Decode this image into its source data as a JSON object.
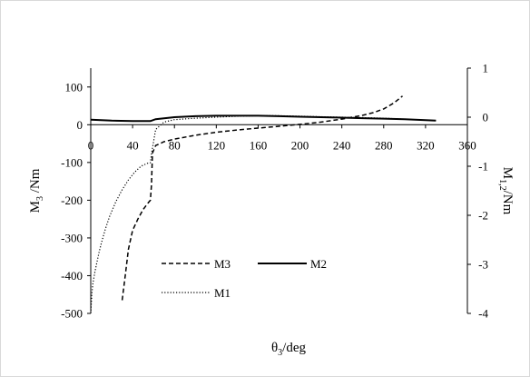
{
  "chart_data": {
    "type": "line",
    "xlabel": "θ3/deg",
    "ylabel_left": "M3 /Nm",
    "ylabel_right": "M1,2/Nm",
    "xlim": [
      0,
      360
    ],
    "ylim_left": [
      -500,
      150
    ],
    "ylim_right": [
      -4,
      1
    ],
    "x_ticks": [
      "0",
      "40",
      "80",
      "120",
      "160",
      "200",
      "240",
      "280",
      "320",
      "360"
    ],
    "y_left_ticks": [
      "100",
      "0",
      "-100",
      "-200",
      "-300",
      "-400",
      "-500"
    ],
    "y_right_ticks": [
      "1",
      "0",
      "-1",
      "-2",
      "-3",
      "-4"
    ],
    "grid": false,
    "legend_position": "bottom-left",
    "series": [
      {
        "name": "M3",
        "axis": "left",
        "style": "dashed",
        "x": [
          30,
          33,
          36,
          40,
          45,
          50,
          54,
          57,
          58,
          59,
          62,
          70,
          80,
          100,
          120,
          140,
          160,
          180,
          200,
          220,
          240,
          260,
          270,
          280,
          290,
          298
        ],
        "y": [
          -465,
          -400,
          -330,
          -280,
          -250,
          -225,
          -210,
          -200,
          -160,
          -75,
          -55,
          -45,
          -38,
          -28,
          -20,
          -14,
          -9,
          -4,
          1,
          7,
          15,
          25,
          32,
          42,
          58,
          76
        ]
      },
      {
        "name": "M2",
        "axis": "right",
        "style": "solid",
        "x": [
          0,
          20,
          40,
          57,
          62,
          80,
          100,
          120,
          140,
          160,
          180,
          200,
          220,
          240,
          260,
          280,
          300,
          320,
          330
        ],
        "y": [
          -0.05,
          -0.07,
          -0.08,
          -0.08,
          -0.04,
          0.0,
          0.02,
          0.03,
          0.03,
          0.03,
          0.02,
          0.01,
          0.0,
          -0.01,
          -0.02,
          -0.03,
          -0.04,
          -0.06,
          -0.07
        ]
      },
      {
        "name": "M1",
        "axis": "right",
        "style": "dotted",
        "x": [
          0,
          1,
          2,
          4,
          6,
          8,
          10,
          14,
          18,
          24,
          30,
          36,
          42,
          48,
          54,
          57,
          58,
          62,
          70,
          80,
          100,
          120,
          140,
          160,
          180,
          200,
          220,
          240,
          260,
          280,
          300
        ],
        "y": [
          -4.0,
          -3.6,
          -3.4,
          -3.15,
          -2.95,
          -2.75,
          -2.58,
          -2.28,
          -2.02,
          -1.72,
          -1.48,
          -1.28,
          -1.12,
          -1.0,
          -0.94,
          -0.93,
          -0.75,
          -0.25,
          -0.1,
          -0.05,
          -0.02,
          0.0,
          0.02,
          0.03,
          0.03,
          0.02,
          0.01,
          0.0,
          -0.01,
          -0.02,
          -0.04
        ]
      }
    ]
  }
}
